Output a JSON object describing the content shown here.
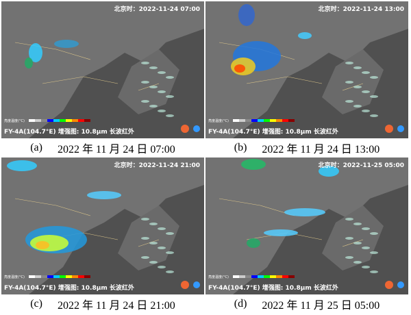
{
  "panels": [
    {
      "timestamp": "北京时：2022-11-24 07:00",
      "colorbar_title": "亮度温度(°C)",
      "product": "FY-4A(104.7°E) 增强图: 10.8μm 长波红外",
      "label": "(a)",
      "date": "2022 年 11 月 24 日 07:00"
    },
    {
      "timestamp": "北京时：2022-11-24 13:00",
      "colorbar_title": "亮度温度(°C)",
      "product": "FY-4A(104.7°E) 增强图: 10.8μm 长波红外",
      "label": "(b)",
      "date": "2022 年 11 月 24 日 13:00"
    },
    {
      "timestamp": "北京时：2022-11-24 21:00",
      "colorbar_title": "亮度温度(°C)",
      "product": "FY-4A(104.7°E) 增强图: 10.8μm 长波红外",
      "label": "(c)",
      "date": "2022 年 11 月 24 日 21:00"
    },
    {
      "timestamp": "北京时：2022-11-25 05:00",
      "colorbar_title": "亮度温度(°C)",
      "product": "FY-4A(104.7°E) 增强图: 10.8μm 长波红外",
      "label": "(d)",
      "date": "2022 年 11 月 25 日 05:00"
    }
  ]
}
